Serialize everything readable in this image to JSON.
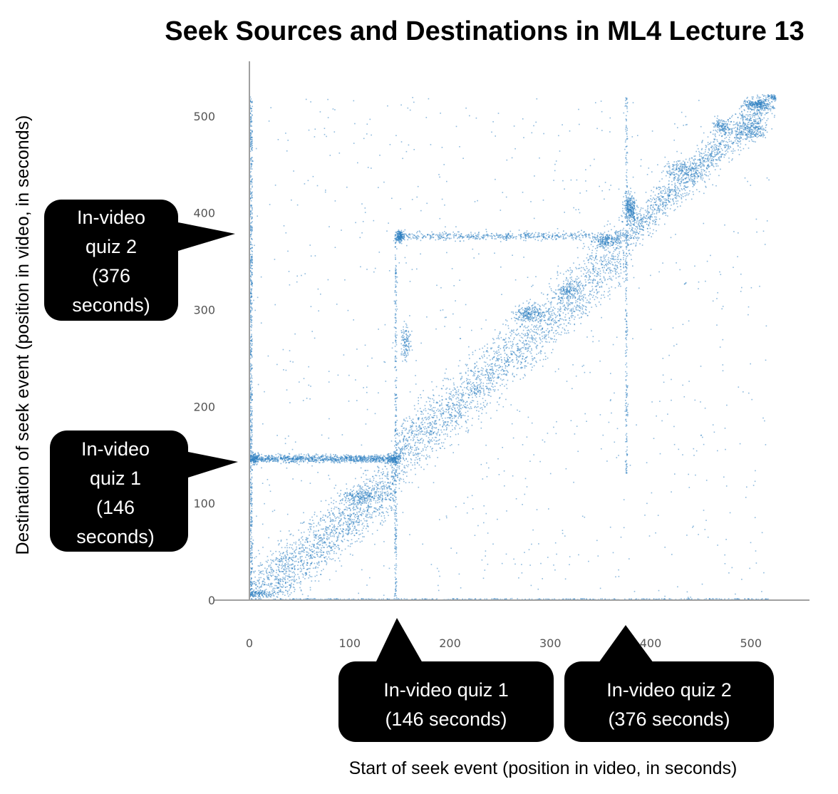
{
  "chart_data": {
    "type": "scatter",
    "title": "Seek Sources and Destinations in ML4 Lecture 13",
    "xlabel": "Start of seek event (position in video, in seconds)",
    "ylabel": "Destination of seek event (position in video, in seconds)",
    "xlim": [
      0,
      560
    ],
    "ylim": [
      0,
      520
    ],
    "x_ticks": [
      0,
      100,
      200,
      300,
      400,
      500
    ],
    "y_ticks": [
      0,
      100,
      200,
      300,
      400,
      500
    ],
    "point_color": "#2e7fc1",
    "grid": false,
    "estimated_point_count": 9000,
    "density_regions": [
      {
        "x_from": 0,
        "x_to": 146,
        "y_from": 0,
        "y_to": 146,
        "description": "diagonal band below quiz 1"
      },
      {
        "x_from": 0,
        "x_to": 146,
        "y_from": 140,
        "y_to": 150,
        "description": "horizontal streak at quiz 1 destination"
      },
      {
        "x_from": 146,
        "x_to": 376,
        "y_from": 146,
        "y_to": 376,
        "description": "diagonal band between quizzes"
      },
      {
        "x_from": 146,
        "x_to": 376,
        "y_from": 370,
        "y_to": 382,
        "description": "horizontal streak at quiz 2 destination"
      },
      {
        "x_from": 376,
        "x_to": 525,
        "y_from": 376,
        "y_to": 520,
        "description": "diagonal band after quiz 2"
      }
    ],
    "vertical_streaks_at_x": [
      0,
      146,
      376
    ],
    "annotations": [
      {
        "id": "y_quiz1",
        "value": 146,
        "lines": [
          "In-video",
          "quiz 1",
          "(146",
          "seconds)"
        ]
      },
      {
        "id": "y_quiz2",
        "value": 376,
        "lines": [
          "In-video",
          "quiz 2",
          "(376",
          "seconds)"
        ]
      },
      {
        "id": "x_quiz1",
        "value": 146,
        "lines": [
          "In-video quiz 1",
          "(146 seconds)"
        ]
      },
      {
        "id": "x_quiz2",
        "value": 376,
        "lines": [
          "In-video quiz 2",
          "(376 seconds)"
        ]
      }
    ]
  }
}
